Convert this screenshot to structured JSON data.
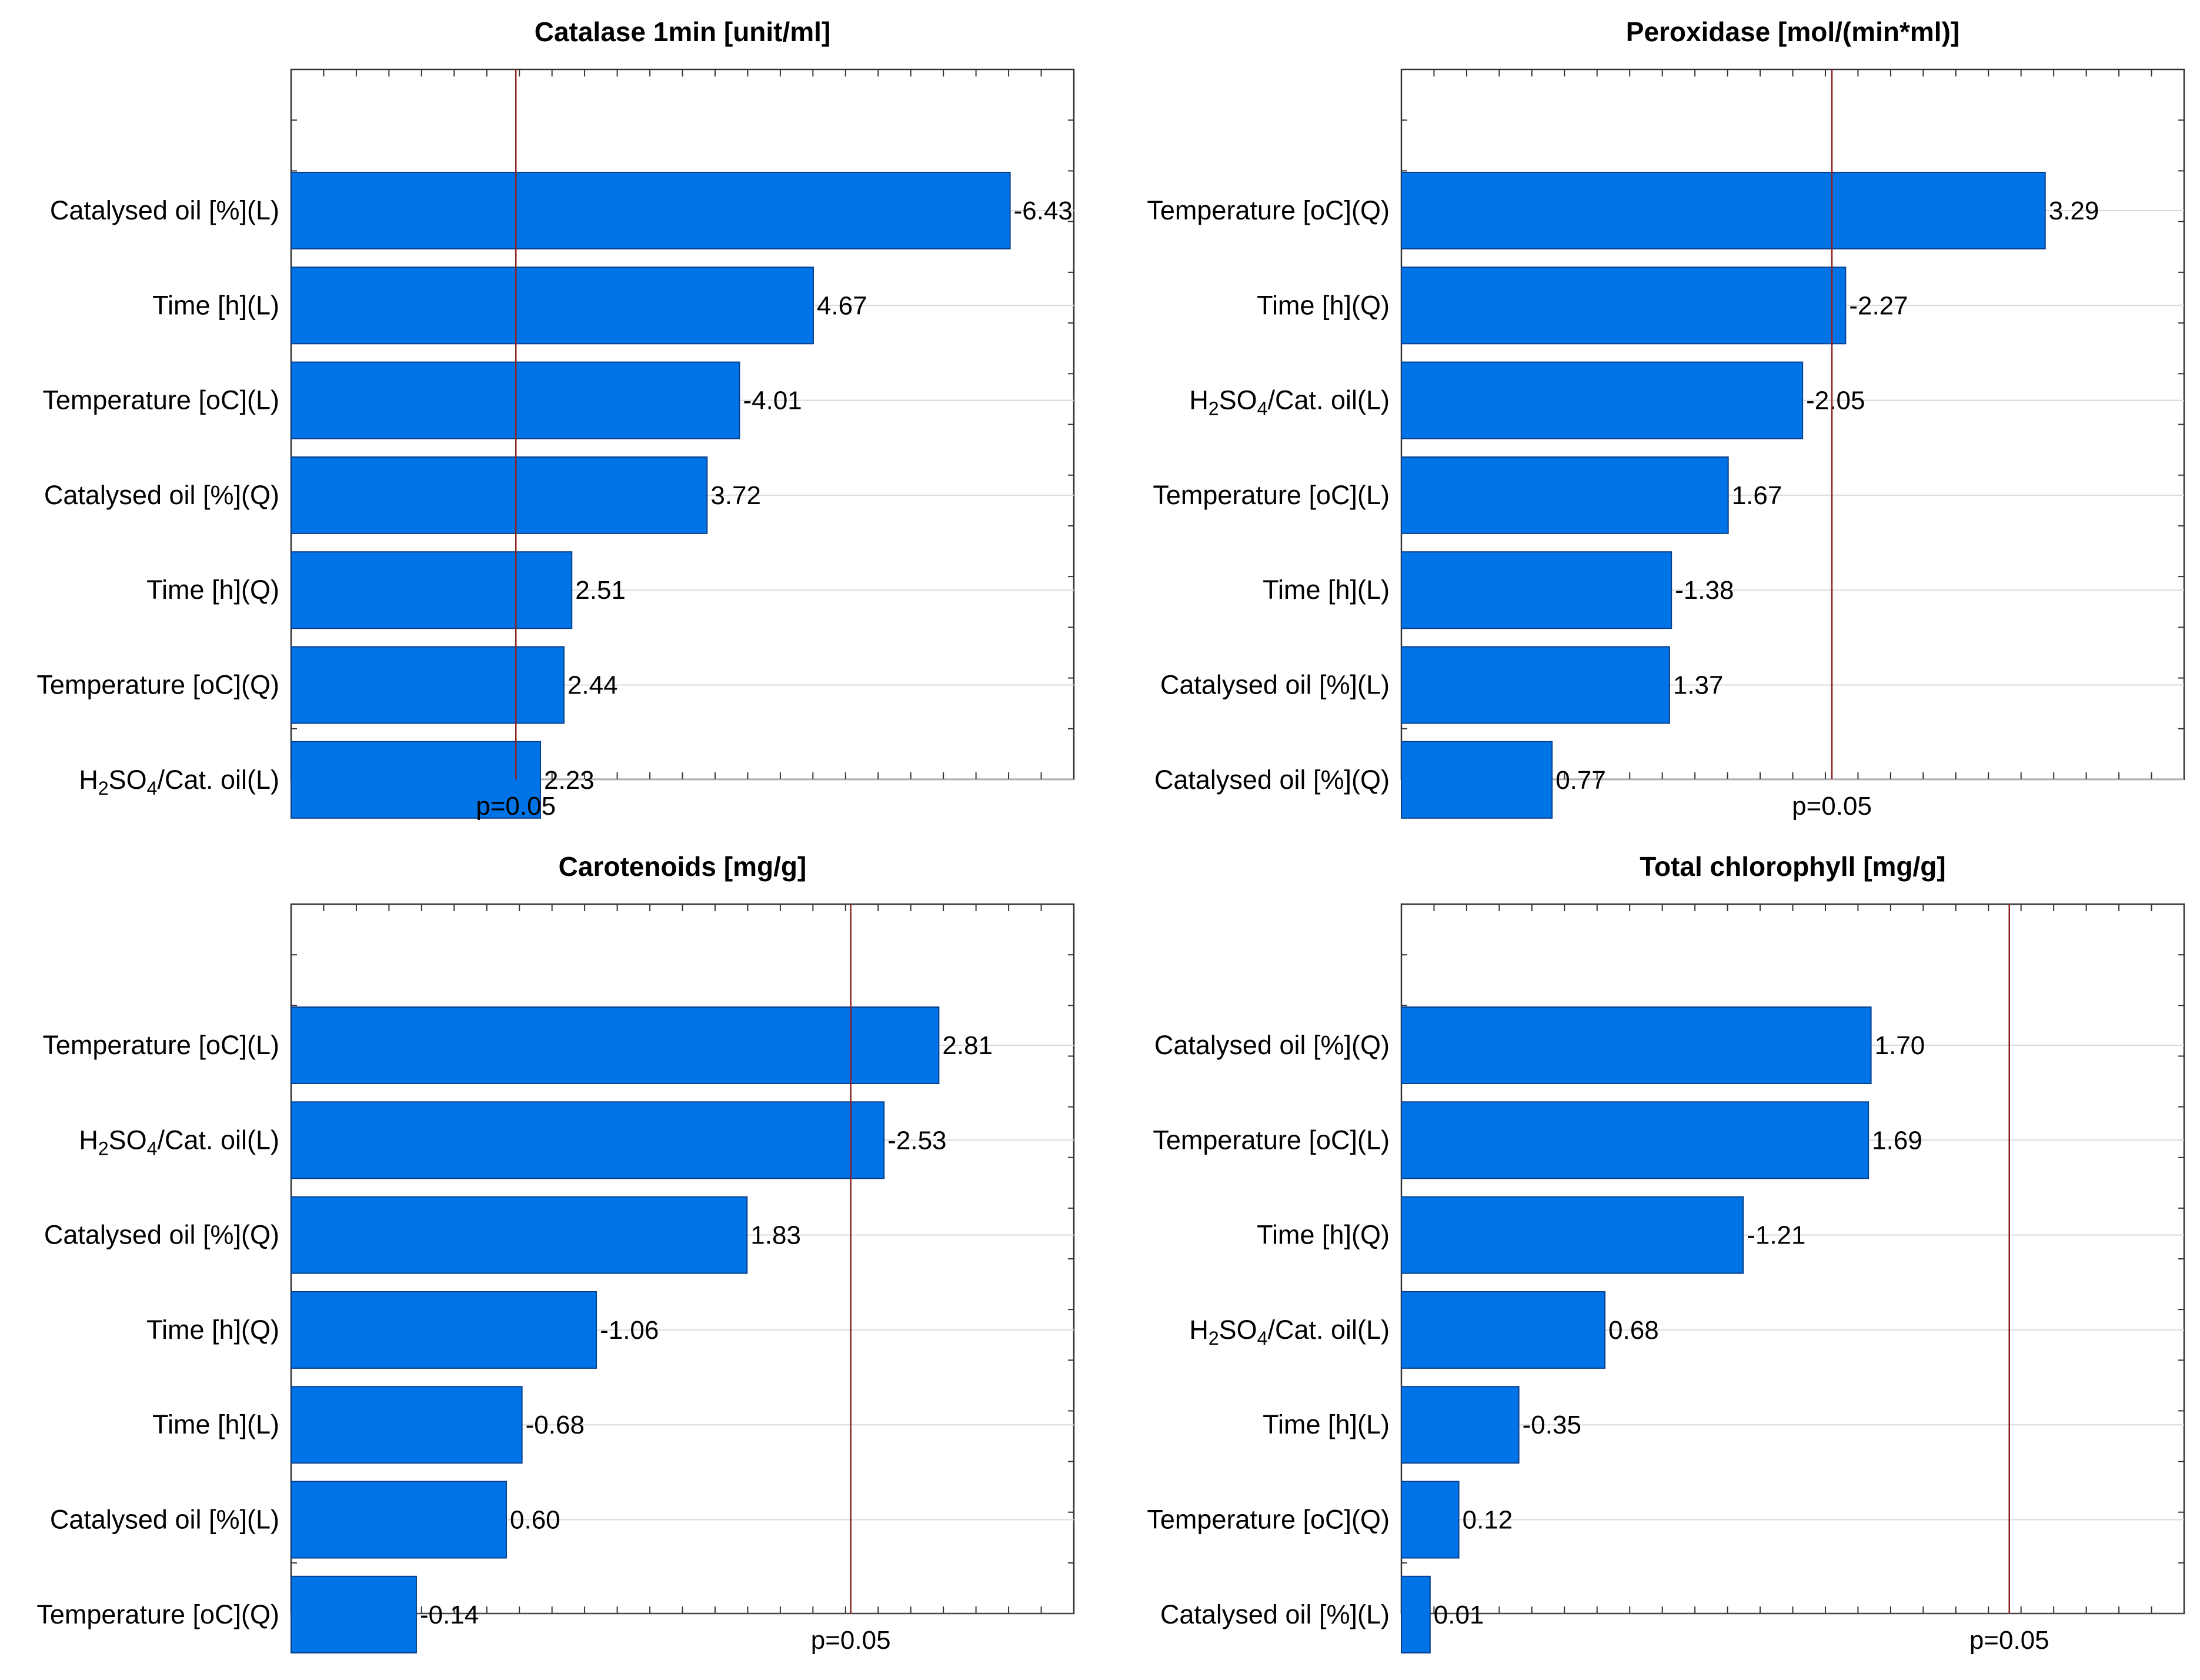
{
  "chart_data": [
    {
      "type": "bar",
      "orientation": "horizontal",
      "title": "Catalase 1min [unit/ml]",
      "categories": [
        "Catalysed oil [%](L)",
        "Time [h](L)",
        "Temperature [oC](L)",
        "Catalysed oil [%](Q)",
        "Time [h](Q)",
        "Temperature [oC](Q)",
        "H2SO4/Cat. oil(L)"
      ],
      "values": [
        6.43,
        4.67,
        4.01,
        3.72,
        2.51,
        2.44,
        2.23
      ],
      "value_labels": [
        "-6.43",
        "4.67",
        "-4.01",
        "3.72",
        "2.51",
        "2.44",
        "2.23"
      ],
      "xlim": [
        0,
        7
      ],
      "reference_value": 2.01,
      "reference_label": "p=0.05",
      "bar_color": "#0073e6",
      "reference_color": "#8b2020"
    },
    {
      "type": "bar",
      "orientation": "horizontal",
      "title": "Peroxidase [mol/(min*ml)]",
      "categories": [
        "Temperature [oC](Q)",
        "Time [h](Q)",
        "H2SO4/Cat. oil(L)",
        "Temperature [oC](L)",
        "Time [h](L)",
        "Catalysed oil [%](L)",
        "Catalysed oil [%](Q)"
      ],
      "values": [
        3.29,
        2.27,
        2.05,
        1.67,
        1.38,
        1.37,
        0.77
      ],
      "value_labels": [
        "3.29",
        "-2.27",
        "-2.05",
        "1.67",
        "-1.38",
        "1.37",
        "0.77"
      ],
      "xlim": [
        0,
        4
      ],
      "reference_value": 2.2,
      "reference_label": "p=0.05",
      "bar_color": "#0073e6",
      "reference_color": "#8b2020"
    },
    {
      "type": "bar",
      "orientation": "horizontal",
      "title": "Carotenoids [mg/g]",
      "categories": [
        "Temperature [oC](L)",
        "H2SO4/Cat. oil(L)",
        "Catalysed oil [%](Q)",
        "Time [h](Q)",
        "Time [h](L)",
        "Catalysed oil [%](L)",
        "Temperature [oC](Q)"
      ],
      "values": [
        2.81,
        2.53,
        1.83,
        1.06,
        0.68,
        0.6,
        0.14
      ],
      "value_labels": [
        "2.81",
        "-2.53",
        "1.83",
        "-1.06",
        "-0.68",
        "0.60",
        "-0.14"
      ],
      "xlim": [
        -0.5,
        3.5
      ],
      "reference_value": 2.36,
      "reference_label": "p=0.05",
      "bar_color": "#0073e6",
      "reference_color": "#8b2020"
    },
    {
      "type": "bar",
      "orientation": "horizontal",
      "title": "Total  chlorophyll [mg/g]",
      "categories": [
        "Catalysed oil [%](Q)",
        "Temperature [oC](L)",
        "Time [h](Q)",
        "H2SO4/Cat. oil(L)",
        "Time [h](L)",
        "Temperature [oC](Q)",
        "Catalysed oil [%](L)"
      ],
      "values": [
        1.7,
        1.69,
        1.21,
        0.68,
        0.35,
        0.12,
        0.01
      ],
      "value_labels": [
        "1.70",
        "1.69",
        "-1.21",
        "0.68",
        "-0.35",
        "0.12",
        "0.01"
      ],
      "xlim": [
        -0.1,
        2.9
      ],
      "reference_value": 2.23,
      "reference_label": "p=0.05",
      "bar_color": "#0073e6",
      "reference_color": "#8b2020"
    }
  ]
}
